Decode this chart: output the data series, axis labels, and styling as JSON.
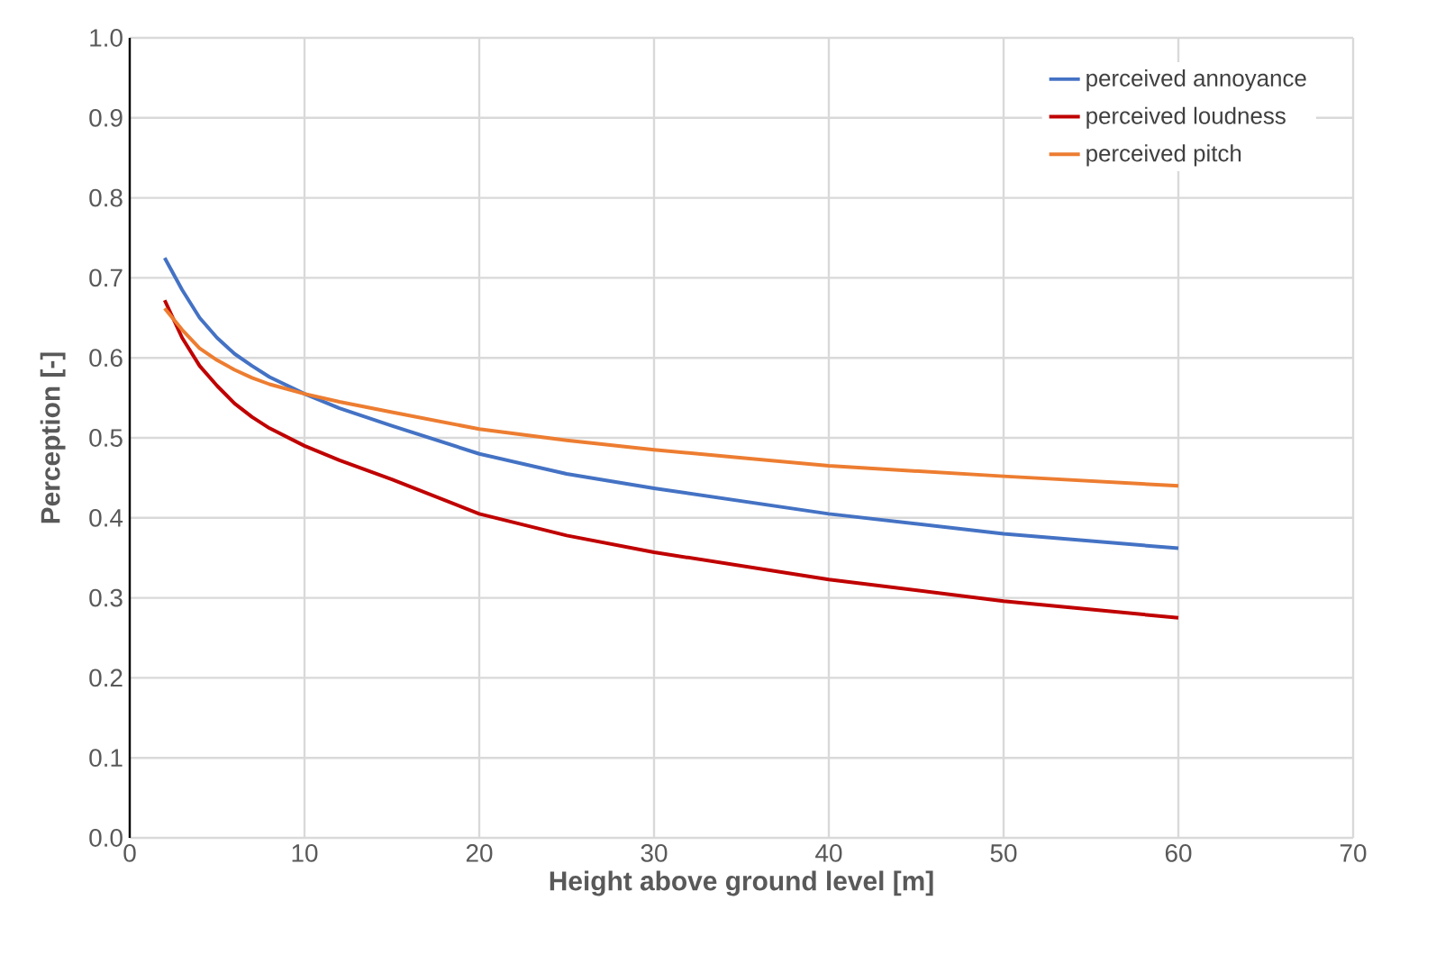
{
  "chart_data": {
    "type": "line",
    "xlabel": "Height above ground level [m]",
    "ylabel": "Perception [-]",
    "xlim": [
      0,
      70
    ],
    "xticks": [
      0,
      10,
      20,
      30,
      40,
      50,
      60,
      70
    ],
    "ylim": [
      0.0,
      1.0
    ],
    "yticks": [
      {
        "value": 0,
        "label": "0.0"
      },
      0.1,
      0.2,
      0.3,
      0.4,
      0.5,
      0.6,
      0.7,
      0.8,
      0.9,
      {
        "value": 1,
        "label": "1.0"
      }
    ],
    "grid": true,
    "legend": "top right",
    "marker": "none",
    "line_style": "solid",
    "series": [
      {
        "name": "perceived annoyance",
        "color": "#4472c4",
        "x": [
          2,
          3,
          4,
          5,
          6,
          7,
          8,
          10,
          12,
          15,
          20,
          25,
          30,
          40,
          50,
          60
        ],
        "values": [
          0.725,
          0.685,
          0.65,
          0.625,
          0.605,
          0.59,
          0.576,
          0.555,
          0.537,
          0.515,
          0.48,
          0.455,
          0.437,
          0.405,
          0.38,
          0.362
        ]
      },
      {
        "name": "perceived loudness",
        "color": "#c00000",
        "x": [
          2,
          3,
          4,
          5,
          6,
          7,
          8,
          10,
          12,
          15,
          20,
          25,
          30,
          40,
          50,
          60
        ],
        "values": [
          0.672,
          0.625,
          0.59,
          0.565,
          0.543,
          0.526,
          0.512,
          0.49,
          0.472,
          0.448,
          0.405,
          0.378,
          0.357,
          0.323,
          0.296,
          0.275
        ]
      },
      {
        "name": "perceived pitch",
        "color": "#ed7d31",
        "x": [
          2,
          3,
          4,
          5,
          6,
          7,
          8,
          10,
          12,
          15,
          20,
          25,
          30,
          40,
          50,
          60
        ],
        "values": [
          0.662,
          0.635,
          0.612,
          0.597,
          0.585,
          0.575,
          0.567,
          0.555,
          0.545,
          0.532,
          0.511,
          0.497,
          0.485,
          0.465,
          0.452,
          0.44
        ]
      }
    ]
  }
}
